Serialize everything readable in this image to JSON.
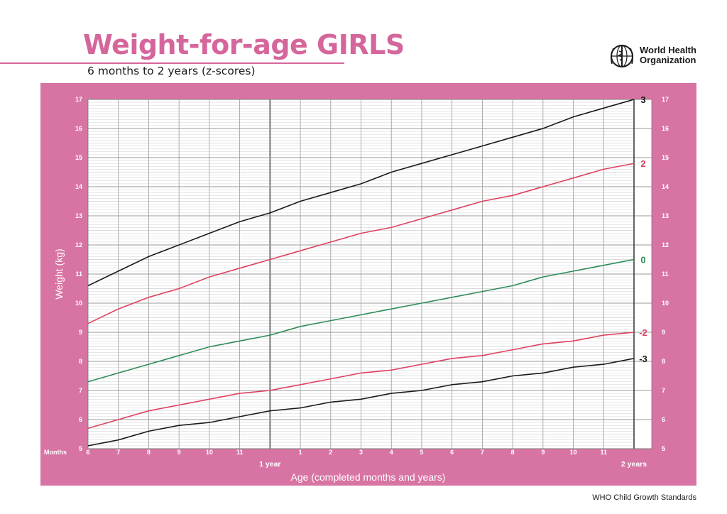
{
  "header": {
    "title": "Weight-for-age GIRLS",
    "subtitle": "6 months to 2 years (z-scores)",
    "org_line1": "World Health",
    "org_line2": "Organization",
    "footer": "WHO Child Growth Standards"
  },
  "colors": {
    "brand_pink": "#d5669b",
    "panel_pink": "#d874a3",
    "grid_major": "#9a9a9a",
    "grid_minor": "#cfcfcf",
    "line_black": "#1a1a1a",
    "line_red": "#e0415f",
    "line_green": "#2e8b57"
  },
  "chart_data": {
    "type": "line",
    "title": "Weight-for-age GIRLS",
    "subtitle": "6 months to 2 years (z-scores)",
    "xlabel": "Age (completed months and years)",
    "ylabel": "Weight (kg)",
    "x_unit_label": "Months",
    "xlim": [
      6,
      24
    ],
    "ylim": [
      5,
      17
    ],
    "yticks": [
      5,
      6,
      7,
      8,
      9,
      10,
      11,
      12,
      13,
      14,
      15,
      16,
      17
    ],
    "xticks": [
      {
        "month": 6,
        "label": "6"
      },
      {
        "month": 7,
        "label": "7"
      },
      {
        "month": 8,
        "label": "8"
      },
      {
        "month": 9,
        "label": "9"
      },
      {
        "month": 10,
        "label": "10"
      },
      {
        "month": 11,
        "label": "11"
      },
      {
        "month": 13,
        "label": "1"
      },
      {
        "month": 14,
        "label": "2"
      },
      {
        "month": 15,
        "label": "3"
      },
      {
        "month": 16,
        "label": "4"
      },
      {
        "month": 17,
        "label": "5"
      },
      {
        "month": 18,
        "label": "6"
      },
      {
        "month": 19,
        "label": "7"
      },
      {
        "month": 20,
        "label": "8"
      },
      {
        "month": 21,
        "label": "9"
      },
      {
        "month": 22,
        "label": "10"
      },
      {
        "month": 23,
        "label": "11"
      }
    ],
    "year_ticks": [
      {
        "month": 12,
        "label": "1 year"
      },
      {
        "month": 24,
        "label": "2 years"
      }
    ],
    "grid": true,
    "x": [
      6,
      7,
      8,
      9,
      10,
      11,
      12,
      13,
      14,
      15,
      16,
      17,
      18,
      19,
      20,
      21,
      22,
      23,
      24
    ],
    "series": [
      {
        "name": "3",
        "color": "#1a1a1a",
        "values": [
          10.6,
          11.1,
          11.6,
          12.0,
          12.4,
          12.8,
          13.1,
          13.5,
          13.8,
          14.1,
          14.5,
          14.8,
          15.1,
          15.4,
          15.7,
          16.0,
          16.4,
          16.7,
          17.0
        ]
      },
      {
        "name": "2",
        "color": "#e0415f",
        "values": [
          9.3,
          9.8,
          10.2,
          10.5,
          10.9,
          11.2,
          11.5,
          11.8,
          12.1,
          12.4,
          12.6,
          12.9,
          13.2,
          13.5,
          13.7,
          14.0,
          14.3,
          14.6,
          14.8
        ]
      },
      {
        "name": "0",
        "color": "#2e8b57",
        "values": [
          7.3,
          7.6,
          7.9,
          8.2,
          8.5,
          8.7,
          8.9,
          9.2,
          9.4,
          9.6,
          9.8,
          10.0,
          10.2,
          10.4,
          10.6,
          10.9,
          11.1,
          11.3,
          11.5
        ]
      },
      {
        "name": "-2",
        "color": "#e0415f",
        "values": [
          5.7,
          6.0,
          6.3,
          6.5,
          6.7,
          6.9,
          7.0,
          7.2,
          7.4,
          7.6,
          7.7,
          7.9,
          8.1,
          8.2,
          8.4,
          8.6,
          8.7,
          8.9,
          9.0
        ]
      },
      {
        "name": "-3",
        "color": "#1a1a1a",
        "values": [
          5.1,
          5.3,
          5.6,
          5.8,
          5.9,
          6.1,
          6.3,
          6.4,
          6.6,
          6.7,
          6.9,
          7.0,
          7.2,
          7.3,
          7.5,
          7.6,
          7.8,
          7.9,
          8.1
        ]
      }
    ]
  }
}
